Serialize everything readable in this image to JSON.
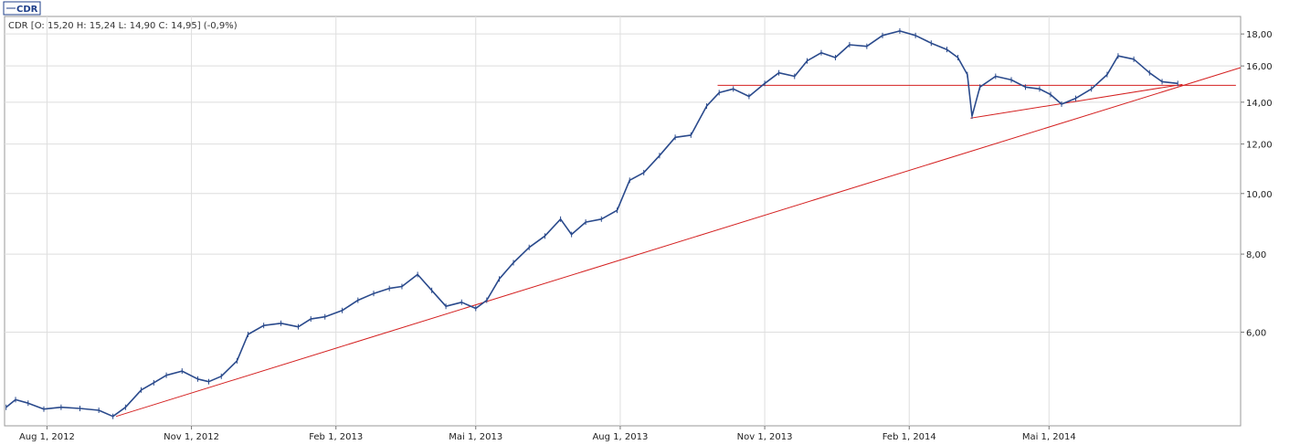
{
  "chart_data": {
    "type": "line",
    "ticker": "CDR",
    "ohlc_header": "CDR [O: 15,20  H: 15,24  L: 14,90  C: 14,95] (-0,9%)",
    "y_scale": "log",
    "ylim": [
      4.25,
      19.2
    ],
    "xlim": [
      "2012-07-05",
      "2014-08-31"
    ],
    "x_ticks": [
      {
        "date": "2012-08-01",
        "label": "Aug 1, 2012"
      },
      {
        "date": "2012-11-01",
        "label": "Nov 1, 2012"
      },
      {
        "date": "2013-02-01",
        "label": "Feb 1, 2013"
      },
      {
        "date": "2013-05-01",
        "label": "Mai 1, 2013"
      },
      {
        "date": "2013-08-01",
        "label": "Aug 1, 2013"
      },
      {
        "date": "2013-11-01",
        "label": "Nov 1, 2013"
      },
      {
        "date": "2014-02-01",
        "label": "Feb 1, 2014"
      },
      {
        "date": "2014-05-01",
        "label": "Mai 1, 2014"
      }
    ],
    "y_ticks": [
      {
        "value": 6,
        "label": "6,00"
      },
      {
        "value": 8,
        "label": "8,00"
      },
      {
        "value": 10,
        "label": "10,00"
      },
      {
        "value": 12,
        "label": "12,00"
      },
      {
        "value": 14,
        "label": "14,00"
      },
      {
        "value": 16,
        "label": "16,00"
      },
      {
        "value": 18,
        "label": "18,00"
      }
    ],
    "grid": true,
    "series": [
      {
        "name": "CDR",
        "color": "#2a4a8c",
        "points": [
          [
            "2012-07-06",
            4.55
          ],
          [
            "2012-07-12",
            4.68
          ],
          [
            "2012-07-20",
            4.62
          ],
          [
            "2012-07-30",
            4.52
          ],
          [
            "2012-08-10",
            4.55
          ],
          [
            "2012-08-22",
            4.53
          ],
          [
            "2012-09-03",
            4.5
          ],
          [
            "2012-09-12",
            4.4
          ],
          [
            "2012-09-20",
            4.55
          ],
          [
            "2012-09-30",
            4.85
          ],
          [
            "2012-10-08",
            4.98
          ],
          [
            "2012-10-16",
            5.12
          ],
          [
            "2012-10-26",
            5.2
          ],
          [
            "2012-11-05",
            5.05
          ],
          [
            "2012-11-12",
            5.0
          ],
          [
            "2012-11-20",
            5.1
          ],
          [
            "2012-11-30",
            5.4
          ],
          [
            "2012-12-07",
            5.95
          ],
          [
            "2012-12-17",
            6.15
          ],
          [
            "2012-12-28",
            6.2
          ],
          [
            "2013-01-08",
            6.12
          ],
          [
            "2013-01-16",
            6.3
          ],
          [
            "2013-01-25",
            6.35
          ],
          [
            "2013-02-05",
            6.5
          ],
          [
            "2013-02-15",
            6.75
          ],
          [
            "2013-02-25",
            6.92
          ],
          [
            "2013-03-07",
            7.05
          ],
          [
            "2013-03-15",
            7.1
          ],
          [
            "2013-03-25",
            7.42
          ],
          [
            "2013-04-03",
            7.0
          ],
          [
            "2013-04-12",
            6.6
          ],
          [
            "2013-04-22",
            6.7
          ],
          [
            "2013-05-01",
            6.55
          ],
          [
            "2013-05-08",
            6.75
          ],
          [
            "2013-05-16",
            7.3
          ],
          [
            "2013-05-25",
            7.75
          ],
          [
            "2013-06-04",
            8.2
          ],
          [
            "2013-06-14",
            8.55
          ],
          [
            "2013-06-24",
            9.1
          ],
          [
            "2013-07-01",
            8.6
          ],
          [
            "2013-07-10",
            9.0
          ],
          [
            "2013-07-20",
            9.1
          ],
          [
            "2013-07-30",
            9.4
          ],
          [
            "2013-08-07",
            10.5
          ],
          [
            "2013-08-16",
            10.8
          ],
          [
            "2013-08-26",
            11.5
          ],
          [
            "2013-09-05",
            12.3
          ],
          [
            "2013-09-15",
            12.4
          ],
          [
            "2013-09-25",
            13.8
          ],
          [
            "2013-10-03",
            14.5
          ],
          [
            "2013-10-12",
            14.7
          ],
          [
            "2013-10-22",
            14.3
          ],
          [
            "2013-11-01",
            15.0
          ],
          [
            "2013-11-10",
            15.6
          ],
          [
            "2013-11-20",
            15.4
          ],
          [
            "2013-11-28",
            16.3
          ],
          [
            "2013-12-07",
            16.8
          ],
          [
            "2013-12-16",
            16.5
          ],
          [
            "2013-12-25",
            17.3
          ],
          [
            "2014-01-05",
            17.2
          ],
          [
            "2014-01-15",
            17.9
          ],
          [
            "2014-01-26",
            18.2
          ],
          [
            "2014-02-05",
            17.9
          ],
          [
            "2014-02-15",
            17.4
          ],
          [
            "2014-02-25",
            17.0
          ],
          [
            "2014-03-04",
            16.5
          ],
          [
            "2014-03-10",
            15.5
          ],
          [
            "2014-03-13",
            13.3
          ],
          [
            "2014-03-18",
            14.8
          ],
          [
            "2014-03-28",
            15.4
          ],
          [
            "2014-04-07",
            15.2
          ],
          [
            "2014-04-16",
            14.8
          ],
          [
            "2014-04-25",
            14.7
          ],
          [
            "2014-05-02",
            14.4
          ],
          [
            "2014-05-09",
            13.9
          ],
          [
            "2014-05-18",
            14.2
          ],
          [
            "2014-05-28",
            14.7
          ],
          [
            "2014-06-07",
            15.5
          ],
          [
            "2014-06-14",
            16.6
          ],
          [
            "2014-06-24",
            16.4
          ],
          [
            "2014-07-04",
            15.6
          ],
          [
            "2014-07-12",
            15.1
          ],
          [
            "2014-07-22",
            15.0
          ]
        ]
      }
    ],
    "trendlines": [
      {
        "color": "#d42020",
        "from": [
          "2012-09-14",
          4.4
        ],
        "to": [
          "2014-08-31",
          15.9
        ]
      },
      {
        "color": "#d42020",
        "from": [
          "2013-10-02",
          14.9
        ],
        "to": [
          "2014-08-28",
          14.9
        ]
      },
      {
        "color": "#d42020",
        "from": [
          "2014-03-12",
          13.2
        ],
        "to": [
          "2014-07-25",
          14.95
        ]
      }
    ]
  }
}
